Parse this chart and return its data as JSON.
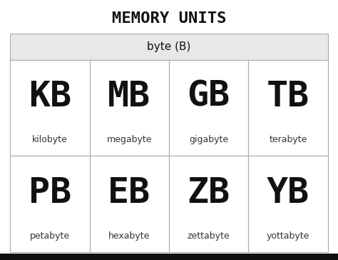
{
  "title": "MEMORY UNITS",
  "subtitle": "byte (B)",
  "rows": [
    [
      {
        "abbr": "KB",
        "name": "kilobyte"
      },
      {
        "abbr": "MB",
        "name": "megabyte"
      },
      {
        "abbr": "GB",
        "name": "gigabyte"
      },
      {
        "abbr": "TB",
        "name": "terabyte"
      }
    ],
    [
      {
        "abbr": "PB",
        "name": "petabyte"
      },
      {
        "abbr": "EB",
        "name": "hexabyte"
      },
      {
        "abbr": "ZB",
        "name": "zettabyte"
      },
      {
        "abbr": "YB",
        "name": "yottabyte"
      }
    ]
  ],
  "bg_color": "#ffffff",
  "cell_border_color": "#aaaaaa",
  "header_bg": "#e8e8e8",
  "title_color": "#111111",
  "abbr_color": "#111111",
  "name_color": "#333333",
  "title_fontsize": 16,
  "subtitle_fontsize": 11,
  "abbr_fontsize": 36,
  "name_fontsize": 9
}
